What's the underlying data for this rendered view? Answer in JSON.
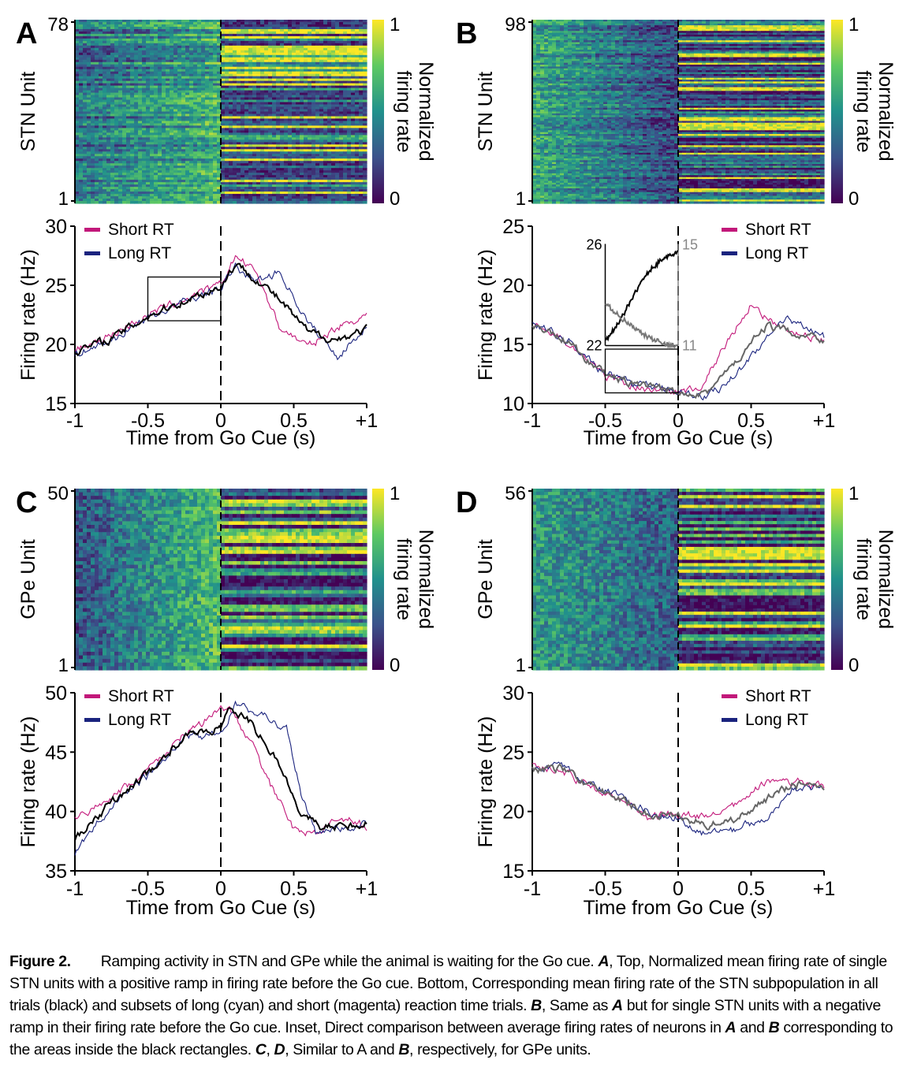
{
  "chart_data": [
    {
      "panel": "A",
      "type": "heatmap+line",
      "heatmap": {
        "ylabel": "STN Unit",
        "y_ticks": [
          "78",
          "1"
        ],
        "colorbar_label": "Normalized firing rate",
        "colorbar_ticks": [
          "1",
          "0"
        ],
        "colormap": [
          "#440154",
          "#3b528b",
          "#21918c",
          "#5ec962",
          "#fde725"
        ]
      },
      "line": {
        "xlabel": "Time from Go Cue (s)",
        "ylabel": "Firing rate (Hz)",
        "ylim": [
          15,
          30
        ],
        "y_ticks": [
          "30",
          "25",
          "20",
          "15"
        ],
        "x_ticks": [
          "-1",
          "-0.5",
          "0",
          "0.5",
          "+1"
        ],
        "legend": [
          "Short RT",
          "Long RT"
        ],
        "series": [
          {
            "name": "Short RT",
            "color": "#c2187a",
            "x": [
              -1,
              -0.75,
              -0.5,
              -0.25,
              0,
              0.1,
              0.25,
              0.4,
              0.6,
              0.8,
              1
            ],
            "y": [
              19.5,
              20.8,
              22.5,
              23.8,
              25.0,
              27.5,
              26.0,
              21.5,
              19.8,
              21.5,
              22.5
            ]
          },
          {
            "name": "Long RT",
            "color": "#1a237e",
            "x": [
              -1,
              -0.75,
              -0.5,
              -0.25,
              0,
              0.1,
              0.25,
              0.4,
              0.6,
              0.8,
              1
            ],
            "y": [
              19.2,
              20.3,
              22.3,
              23.6,
              24.8,
              26.5,
              25.3,
              26.2,
              21.8,
              19.0,
              21.5
            ]
          },
          {
            "color": "#000000",
            "x": [
              -1,
              -0.75,
              -0.5,
              -0.25,
              0,
              0.1,
              0.25,
              0.4,
              0.6,
              0.8,
              1
            ],
            "y": [
              19.4,
              20.5,
              22.4,
              23.7,
              24.9,
              26.8,
              25.5,
              23.8,
              21.0,
              20.4,
              21.3
            ]
          }
        ],
        "rect": {
          "x0": -0.5,
          "x1": 0,
          "y0": 22.0,
          "y1": 25.7
        }
      }
    },
    {
      "panel": "B",
      "type": "heatmap+line",
      "heatmap": {
        "ylabel": "STN Unit",
        "y_ticks": [
          "98",
          "1"
        ],
        "colorbar_label": "Normalized firing rate",
        "colorbar_ticks": [
          "1",
          "0"
        ]
      },
      "line": {
        "xlabel": "Time from Go Cue (s)",
        "ylabel": "Firing rate (Hz)",
        "ylim": [
          10,
          25
        ],
        "y_ticks": [
          "25",
          "20",
          "15",
          "10"
        ],
        "x_ticks": [
          "-1",
          "-0.5",
          "0",
          "0.5",
          "+1"
        ],
        "legend": [
          "Short RT",
          "Long RT"
        ],
        "series": [
          {
            "name": "Short RT",
            "color": "#c2187a",
            "x": [
              -1,
              -0.75,
              -0.5,
              -0.25,
              0,
              0.15,
              0.3,
              0.5,
              0.7,
              0.85,
              1
            ],
            "y": [
              16.8,
              15.0,
              12.3,
              11.3,
              11.0,
              11.2,
              14.5,
              18.5,
              16.2,
              15.8,
              15.3
            ]
          },
          {
            "name": "Long RT",
            "color": "#1a237e",
            "x": [
              -1,
              -0.75,
              -0.5,
              -0.25,
              0,
              0.2,
              0.4,
              0.6,
              0.75,
              0.85,
              1
            ],
            "y": [
              16.8,
              15.2,
              12.5,
              11.5,
              11.1,
              10.5,
              12.5,
              15.5,
              17.0,
              16.8,
              15.6
            ]
          },
          {
            "color": "#666666",
            "x": [
              -1,
              -0.75,
              -0.5,
              -0.25,
              0,
              0.2,
              0.4,
              0.6,
              0.8,
              1
            ],
            "y": [
              16.8,
              15.1,
              12.4,
              11.4,
              11.0,
              11.0,
              13.5,
              16.5,
              16.0,
              15.5
            ]
          }
        ],
        "rect": {
          "x0": -0.5,
          "x1": 0,
          "y0": 10.9,
          "y1": 14.6
        },
        "inset": {
          "left_ticks": [
            "26",
            "22"
          ],
          "right_ticks": [
            "15",
            "11"
          ],
          "series": [
            {
              "color": "#000000",
              "y": [
                0.05,
                0.25,
                0.55,
                0.78,
                0.92,
                0.97
              ]
            },
            {
              "color": "#777777",
              "y": [
                0.45,
                0.3,
                0.18,
                0.08,
                0.02,
                0.0
              ]
            }
          ]
        }
      }
    },
    {
      "panel": "C",
      "type": "heatmap+line",
      "heatmap": {
        "ylabel": "GPe Unit",
        "y_ticks": [
          "50",
          "1"
        ],
        "colorbar_label": "Normalized firing rate",
        "colorbar_ticks": [
          "1",
          "0"
        ]
      },
      "line": {
        "xlabel": "Time from Go Cue (s)",
        "ylabel": "Firing rate (Hz)",
        "ylim": [
          35,
          50
        ],
        "y_ticks": [
          "50",
          "45",
          "40",
          "35"
        ],
        "x_ticks": [
          "-1",
          "-0.5",
          "0",
          "0.5",
          "+1"
        ],
        "legend": [
          "Short RT",
          "Long RT"
        ],
        "series": [
          {
            "name": "Short RT",
            "color": "#c2187a",
            "x": [
              -1,
              -0.75,
              -0.5,
              -0.25,
              0,
              0.05,
              0.2,
              0.35,
              0.5,
              0.65,
              0.8,
              1
            ],
            "y": [
              39.5,
              41.0,
              43.5,
              46.5,
              48.5,
              48.8,
              46.0,
              42.0,
              38.5,
              38.2,
              39.5,
              38.8
            ]
          },
          {
            "name": "Long RT",
            "color": "#1a237e",
            "x": [
              -1,
              -0.75,
              -0.5,
              -0.25,
              0,
              0.1,
              0.3,
              0.45,
              0.55,
              0.65,
              0.8,
              1
            ],
            "y": [
              36.5,
              40.5,
              43.0,
              46.2,
              46.5,
              49.0,
              48.0,
              47.0,
              41.5,
              38.0,
              38.5,
              39.0
            ]
          },
          {
            "color": "#000000",
            "x": [
              -1,
              -0.75,
              -0.5,
              -0.25,
              0,
              0.05,
              0.2,
              0.4,
              0.55,
              0.7,
              1
            ],
            "y": [
              37.5,
              40.8,
              43.2,
              46.3,
              47.0,
              49.0,
              47.5,
              44.0,
              40.0,
              38.6,
              39.0
            ]
          }
        ]
      }
    },
    {
      "panel": "D",
      "type": "heatmap+line",
      "heatmap": {
        "ylabel": "GPe Unit",
        "y_ticks": [
          "56",
          "1"
        ],
        "colorbar_label": "Normalized firing rate",
        "colorbar_ticks": [
          "1",
          "0"
        ]
      },
      "line": {
        "xlabel": "Time from Go Cue (s)",
        "ylabel": "Firing rate (Hz)",
        "ylim": [
          15,
          30
        ],
        "y_ticks": [
          "30",
          "25",
          "20",
          "15"
        ],
        "x_ticks": [
          "-1",
          "-0.5",
          "0",
          "0.5",
          "+1"
        ],
        "legend": [
          "Short RT",
          "Long RT"
        ],
        "series": [
          {
            "name": "Short RT",
            "color": "#c2187a",
            "x": [
              -1,
              -0.8,
              -0.6,
              -0.4,
              -0.2,
              0,
              0.2,
              0.4,
              0.6,
              0.8,
              1
            ],
            "y": [
              23.8,
              23.5,
              22.0,
              21.0,
              19.5,
              19.8,
              19.5,
              20.5,
              22.5,
              22.5,
              22.0
            ]
          },
          {
            "name": "Long RT",
            "color": "#1a237e",
            "x": [
              -1,
              -0.8,
              -0.6,
              -0.4,
              -0.2,
              0,
              0.2,
              0.4,
              0.6,
              0.8,
              1
            ],
            "y": [
              23.5,
              23.8,
              22.3,
              21.2,
              20.0,
              19.5,
              18.0,
              18.5,
              19.5,
              22.0,
              22.2
            ]
          },
          {
            "color": "#666666",
            "x": [
              -1,
              -0.8,
              -0.6,
              -0.4,
              -0.2,
              0,
              0.2,
              0.4,
              0.6,
              0.8,
              1
            ],
            "y": [
              23.6,
              23.6,
              22.1,
              21.1,
              19.8,
              19.6,
              18.8,
              19.4,
              21.0,
              22.3,
              22.1
            ]
          }
        ]
      }
    }
  ],
  "caption": {
    "label": "Figure 2.",
    "text": "Ramping activity in STN and GPe while the animal is waiting for the Go cue. A, Top, Normalized mean firing rate of single STN units with a positive ramp in firing rate before the Go cue. Bottom, Corresponding mean firing rate of the STN subpopulation in all trials (black) and subsets of long (cyan) and short (magenta) reaction time trials. B, Same as A but for single STN units with a negative ramp in their firing rate before the Go cue. Inset, Direct comparison between average firing rates of neurons in A and B corresponding to the areas inside the black rectangles. C, D, Similar to A and B, respectively, for GPe units."
  }
}
